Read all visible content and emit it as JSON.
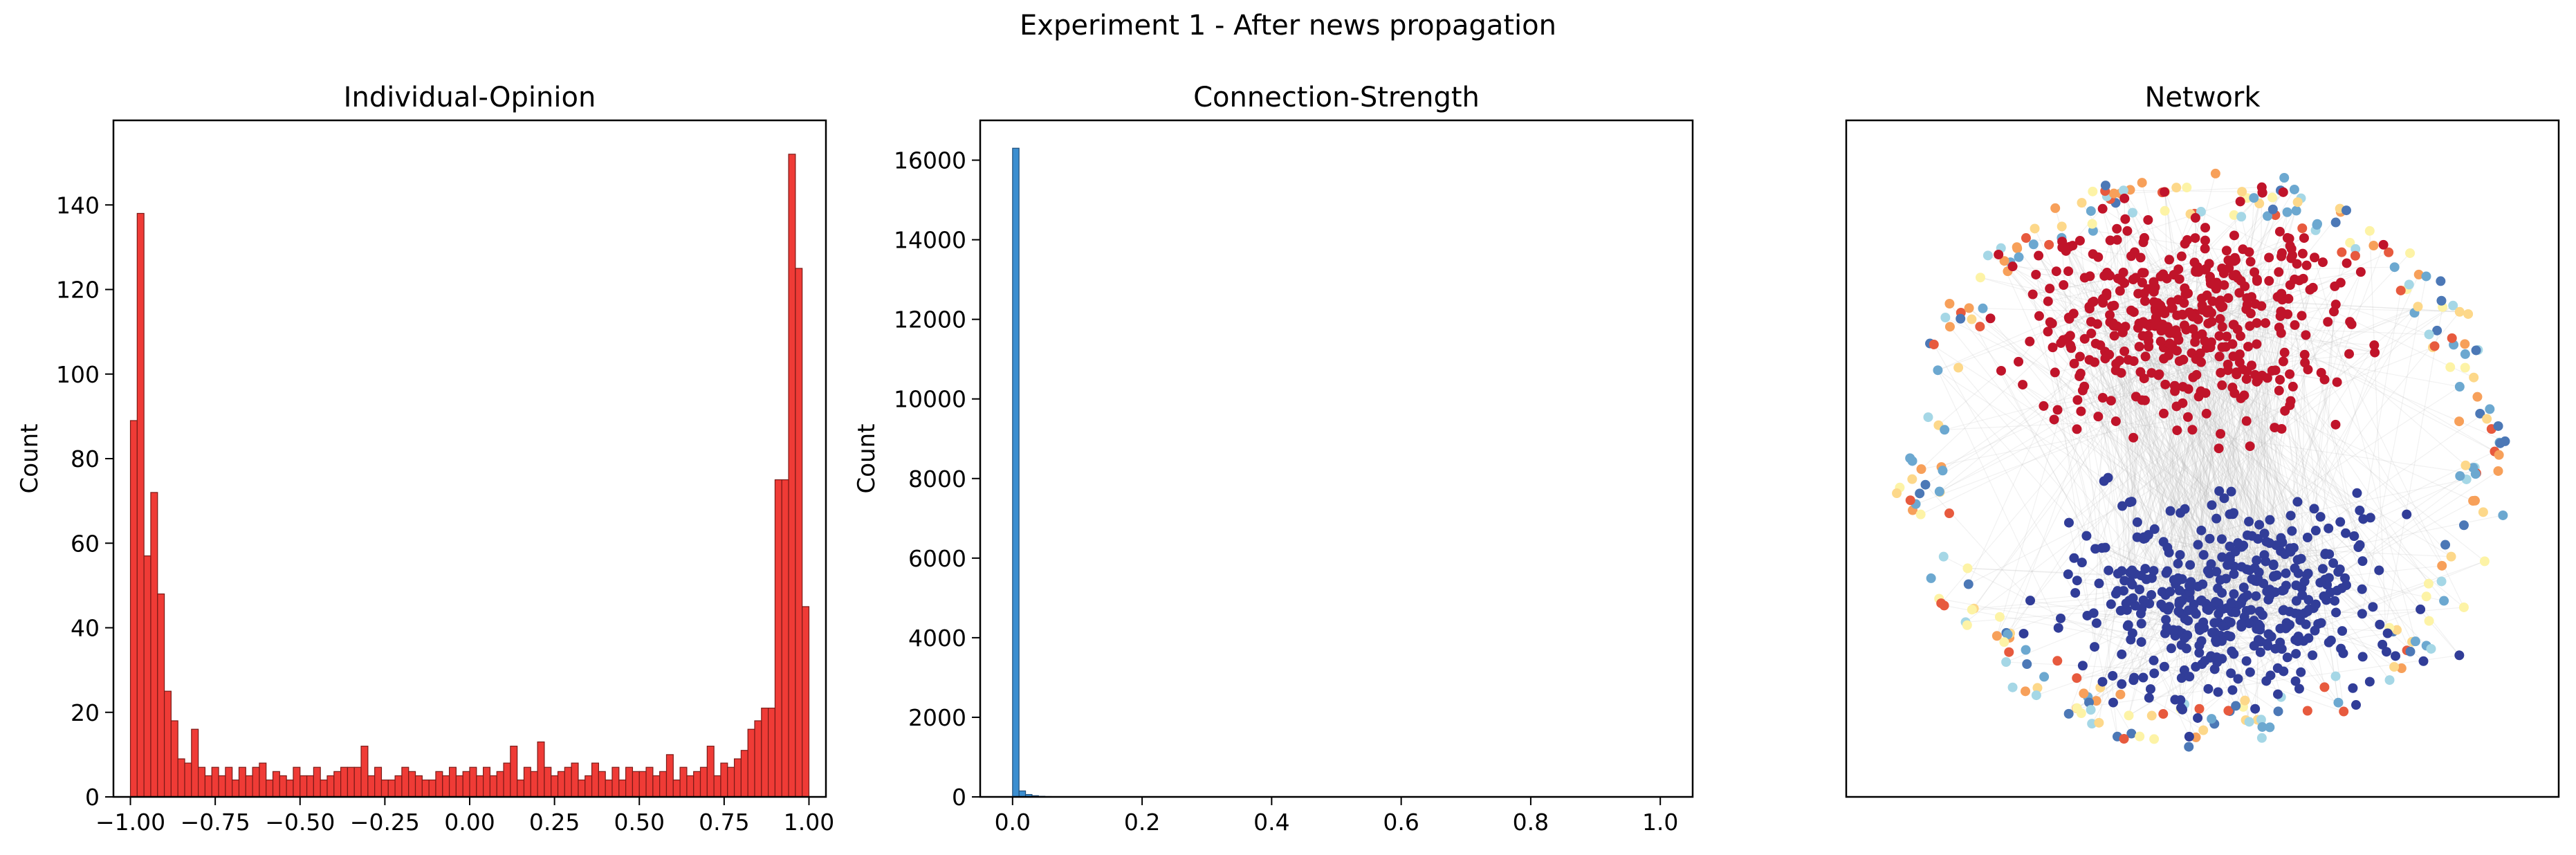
{
  "figure": {
    "suptitle": "Experiment 1 - After news propagation"
  },
  "chart_data": [
    {
      "type": "bar",
      "title": "Individual-Opinion",
      "xlabel": "",
      "ylabel": "Count",
      "xlim": [
        -1.05,
        1.05
      ],
      "ylim": [
        0,
        160
      ],
      "xticks": [
        -1.0,
        -0.75,
        -0.5,
        -0.25,
        0.0,
        0.25,
        0.5,
        0.75,
        1.0
      ],
      "xtick_labels": [
        "−1.00",
        "−0.75",
        "−0.50",
        "−0.25",
        "0.00",
        "0.25",
        "0.50",
        "0.75",
        "1.00"
      ],
      "yticks": [
        0,
        20,
        40,
        60,
        80,
        100,
        120,
        140
      ],
      "ytick_labels": [
        "0",
        "20",
        "40",
        "60",
        "80",
        "100",
        "120",
        "140"
      ],
      "bin_start": -1.0,
      "bin_width": 0.02,
      "values": [
        89,
        138,
        57,
        72,
        48,
        25,
        18,
        9,
        8,
        16,
        7,
        5,
        7,
        5,
        7,
        4,
        7,
        5,
        7,
        8,
        4,
        6,
        5,
        4,
        7,
        5,
        5,
        7,
        4,
        5,
        6,
        7,
        7,
        7,
        12,
        5,
        7,
        4,
        4,
        5,
        7,
        6,
        5,
        4,
        4,
        6,
        5,
        7,
        5,
        6,
        7,
        5,
        7,
        5,
        6,
        8,
        12,
        4,
        7,
        6,
        13,
        7,
        5,
        6,
        7,
        8,
        4,
        5,
        8,
        6,
        4,
        7,
        4,
        7,
        6,
        6,
        7,
        5,
        6,
        10,
        4,
        7,
        5,
        6,
        7,
        12,
        5,
        8,
        7,
        9,
        11,
        16,
        18,
        21,
        21,
        75,
        75,
        152,
        125,
        45
      ],
      "bar_color": "#ef3b36",
      "edge_color": "#7a1a17"
    },
    {
      "type": "bar",
      "title": "Connection-Strength",
      "xlabel": "",
      "ylabel": "Count",
      "xlim": [
        -0.05,
        1.05
      ],
      "ylim": [
        0,
        17000
      ],
      "xticks": [
        0.0,
        0.2,
        0.4,
        0.6,
        0.8,
        1.0
      ],
      "xtick_labels": [
        "0.0",
        "0.2",
        "0.4",
        "0.6",
        "0.8",
        "1.0"
      ],
      "yticks": [
        0,
        2000,
        4000,
        6000,
        8000,
        10000,
        12000,
        14000,
        16000
      ],
      "ytick_labels": [
        "0",
        "2000",
        "4000",
        "6000",
        "8000",
        "10000",
        "12000",
        "14000",
        "16000"
      ],
      "bin_start": 0.0,
      "bin_width": 0.01,
      "values": [
        16300,
        150,
        60,
        30,
        15,
        8,
        5,
        3,
        2,
        1
      ],
      "bar_color": "#3b8ed0",
      "edge_color": "#1f4e79"
    },
    {
      "type": "scatter",
      "title": "Network",
      "xlabel": "",
      "ylabel": "",
      "grid": false,
      "cluster_colors": {
        "opinion_positive": "#c0142a",
        "opinion_negative": "#313d98",
        "periphery": [
          "#fdf3a6",
          "#a5d7e6",
          "#f7a05a",
          "#6ca8d0",
          "#e75a3e",
          "#4c78b6",
          "#fdd88a"
        ],
        "edges": "#bdbdbd"
      }
    }
  ]
}
